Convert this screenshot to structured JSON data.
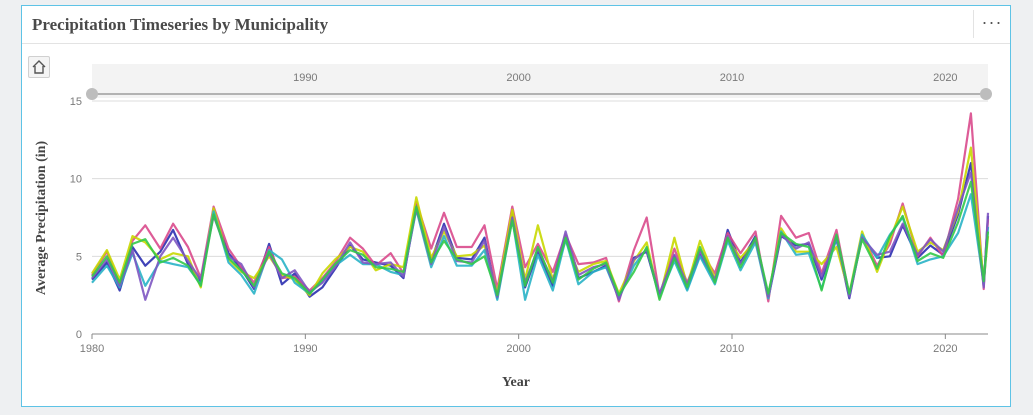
{
  "card": {
    "title": "Precipitation Timeseries by Municipality",
    "menu_label": "···"
  },
  "toolbar": {
    "home_icon": "home-icon"
  },
  "navigator": {
    "tick_labels": [
      "1990",
      "2000",
      "2010",
      "2020"
    ]
  },
  "chart_data": {
    "type": "line",
    "title": "Precipitation Timeseries by Municipality",
    "xlabel": "Year",
    "ylabel": "Average Precipitation (in)",
    "xlim": [
      1980,
      2022
    ],
    "ylim": [
      0,
      15
    ],
    "x_ticks": [
      1980,
      1990,
      2000,
      2010,
      2020
    ],
    "y_ticks": [
      0,
      5,
      10,
      15
    ],
    "grid": "horizontal",
    "legend": "none",
    "x": [
      1980,
      1980.7,
      1981.3,
      1981.9,
      1982.5,
      1983.2,
      1983.8,
      1984.5,
      1985.1,
      1985.7,
      1986.4,
      1987.0,
      1987.6,
      1988.3,
      1988.9,
      1989.5,
      1990.2,
      1990.8,
      1991.4,
      1992.1,
      1992.7,
      1993.3,
      1994.0,
      1994.6,
      1995.2,
      1995.9,
      1996.5,
      1997.1,
      1997.8,
      1998.4,
      1999.0,
      1999.7,
      2000.3,
      2000.9,
      2001.6,
      2002.2,
      2002.8,
      2003.5,
      2004.1,
      2004.7,
      2005.4,
      2006.0,
      2006.6,
      2007.3,
      2007.9,
      2008.5,
      2009.2,
      2009.8,
      2010.4,
      2011.1,
      2011.7,
      2012.3,
      2013.0,
      2013.6,
      2014.2,
      2014.9,
      2015.5,
      2016.1,
      2016.8,
      2017.4,
      2018.0,
      2018.7,
      2019.3,
      2019.9,
      2020.6,
      2021.2,
      2021.8,
      2022.0
    ],
    "series": [
      {
        "color": "#2b2fb0",
        "values": [
          3.5,
          4.6,
          2.8,
          5.6,
          4.4,
          5.3,
          6.7,
          4.5,
          3.4,
          7.8,
          5.2,
          4.2,
          2.9,
          5.8,
          3.2,
          3.9,
          2.4,
          3.0,
          4.2,
          5.7,
          4.8,
          4.6,
          4.4,
          3.6,
          8.3,
          4.7,
          7.1,
          4.9,
          4.8,
          6.2,
          2.3,
          7.7,
          3.0,
          5.3,
          3.1,
          6.3,
          3.6,
          4.0,
          4.4,
          2.3,
          4.9,
          5.3,
          2.4,
          5.0,
          2.9,
          5.1,
          3.4,
          6.7,
          4.6,
          6.3,
          2.3,
          6.3,
          5.7,
          5.8,
          3.5,
          6.1,
          2.3,
          6.3,
          4.9,
          5.0,
          7.0,
          4.9,
          5.7,
          5.1,
          7.7,
          11.0,
          3.1,
          7.6
        ]
      },
      {
        "color": "#d94a8c",
        "values": [
          3.8,
          5.3,
          3.2,
          6.0,
          7.0,
          5.5,
          7.1,
          5.6,
          3.6,
          8.2,
          5.5,
          4.3,
          3.3,
          5.6,
          3.6,
          3.7,
          2.8,
          3.6,
          4.6,
          6.2,
          5.5,
          4.4,
          5.2,
          3.9,
          8.5,
          5.5,
          7.8,
          5.6,
          5.6,
          7.0,
          2.9,
          8.2,
          4.3,
          5.8,
          4.0,
          6.4,
          4.5,
          4.6,
          4.9,
          2.1,
          5.4,
          7.5,
          2.5,
          5.5,
          3.3,
          5.4,
          3.9,
          6.5,
          5.2,
          6.6,
          2.1,
          7.6,
          6.2,
          6.5,
          3.9,
          6.7,
          2.5,
          6.4,
          4.4,
          5.8,
          8.4,
          5.0,
          6.2,
          5.0,
          8.7,
          14.2,
          2.9,
          7.4
        ]
      },
      {
        "color": "#c8d800",
        "values": [
          3.9,
          5.4,
          3.5,
          6.3,
          5.9,
          4.8,
          5.2,
          5.0,
          3.0,
          8.1,
          4.8,
          4.0,
          3.6,
          5.0,
          3.8,
          3.5,
          2.5,
          3.9,
          4.8,
          5.6,
          5.3,
          4.1,
          4.5,
          4.3,
          8.8,
          4.9,
          6.6,
          5.0,
          5.1,
          5.7,
          2.6,
          8.0,
          3.5,
          7.0,
          3.5,
          6.0,
          4.0,
          4.5,
          4.7,
          2.6,
          4.7,
          5.9,
          2.3,
          6.2,
          3.1,
          6.0,
          3.6,
          6.1,
          4.9,
          6.0,
          2.5,
          6.8,
          5.3,
          5.3,
          4.5,
          5.6,
          2.6,
          6.6,
          4.0,
          6.1,
          8.2,
          5.3,
          5.9,
          5.4,
          7.9,
          12.0,
          3.3,
          6.3
        ]
      },
      {
        "color": "#29b3c7",
        "values": [
          3.3,
          4.4,
          3.0,
          5.2,
          3.1,
          4.7,
          4.5,
          4.3,
          3.2,
          7.9,
          4.6,
          3.8,
          2.6,
          5.4,
          4.8,
          3.3,
          2.6,
          3.4,
          4.4,
          5.1,
          4.5,
          4.5,
          4.0,
          3.8,
          8.0,
          4.3,
          6.3,
          4.4,
          4.4,
          5.4,
          2.2,
          7.4,
          2.2,
          5.1,
          2.8,
          6.1,
          3.2,
          4.0,
          4.3,
          2.3,
          4.4,
          5.5,
          2.4,
          4.7,
          2.8,
          5.0,
          3.2,
          6.0,
          4.1,
          5.9,
          2.3,
          6.6,
          5.1,
          5.2,
          2.9,
          6.2,
          2.5,
          6.4,
          4.9,
          6.4,
          7.5,
          4.5,
          4.8,
          5.0,
          6.5,
          9.0,
          3.2,
          6.9
        ]
      },
      {
        "color": "#7e57c2",
        "values": [
          3.6,
          4.8,
          3.1,
          5.4,
          2.2,
          5.0,
          6.2,
          4.7,
          3.5,
          7.6,
          5.0,
          4.5,
          3.0,
          5.2,
          3.6,
          4.1,
          2.7,
          3.3,
          4.3,
          5.9,
          4.6,
          4.5,
          4.6,
          3.7,
          8.1,
          4.5,
          6.9,
          4.7,
          4.6,
          6.0,
          2.4,
          7.5,
          3.3,
          5.5,
          3.4,
          6.6,
          3.8,
          4.3,
          4.5,
          2.2,
          4.8,
          5.4,
          2.6,
          5.1,
          3.2,
          5.3,
          3.5,
          6.3,
          4.5,
          6.1,
          2.4,
          6.4,
          5.5,
          5.9,
          3.7,
          6.3,
          2.4,
          6.2,
          5.1,
          5.3,
          7.1,
          5.1,
          6.1,
          5.3,
          8.1,
          10.4,
          3.0,
          7.8
        ]
      },
      {
        "color": "#33c94a",
        "values": [
          3.7,
          5.0,
          3.3,
          5.8,
          6.1,
          4.6,
          4.9,
          4.4,
          3.1,
          7.7,
          4.9,
          4.1,
          3.1,
          5.3,
          3.9,
          3.6,
          2.6,
          3.5,
          4.5,
          5.4,
          5.1,
          4.3,
          4.2,
          4.0,
          8.2,
          4.6,
          6.0,
          4.8,
          4.5,
          5.0,
          2.5,
          7.3,
          3.1,
          5.6,
          3.3,
          6.2,
          3.5,
          4.2,
          4.6,
          2.5,
          4.0,
          5.6,
          2.2,
          4.9,
          3.0,
          5.6,
          3.3,
          6.2,
          4.3,
          6.2,
          2.6,
          6.5,
          5.8,
          5.6,
          2.8,
          6.4,
          2.6,
          6.1,
          4.2,
          6.3,
          7.6,
          4.7,
          5.2,
          4.9,
          7.2,
          9.8,
          3.4,
          6.6
        ]
      }
    ]
  }
}
